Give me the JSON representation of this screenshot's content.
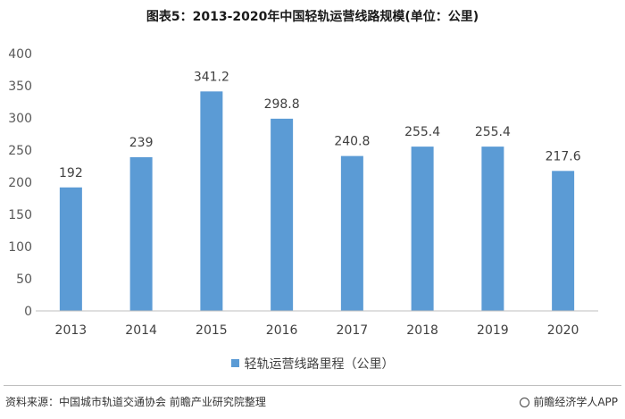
{
  "title": "图表5：2013-2020年中国轻轨运营线路规模(单位：公里)",
  "chart_data": {
    "type": "bar",
    "categories": [
      "2013",
      "2014",
      "2015",
      "2016",
      "2017",
      "2018",
      "2019",
      "2020"
    ],
    "series": [
      {
        "name": "轻轨运营线路里程（公里）",
        "values": [
          192,
          239,
          341.2,
          298.8,
          240.8,
          255.4,
          255.4,
          217.6
        ]
      }
    ],
    "data_labels": [
      "192",
      "239",
      "341.2",
      "298.8",
      "240.8",
      "255.4",
      "255.4",
      "217.6"
    ],
    "ylim": [
      0,
      400
    ],
    "yticks": [
      0,
      50,
      100,
      150,
      200,
      250,
      300,
      350,
      400
    ],
    "xlabel": "",
    "ylabel": "",
    "grid": false,
    "legend_position": "bottom",
    "bar_color": "#5b9bd5"
  },
  "legend": {
    "label": "轻轨运营线路里程（公里）"
  },
  "footer": {
    "source": "资料来源：中国城市轨道交通协会 前瞻产业研究院整理",
    "brand": "前瞻经济学人APP"
  }
}
